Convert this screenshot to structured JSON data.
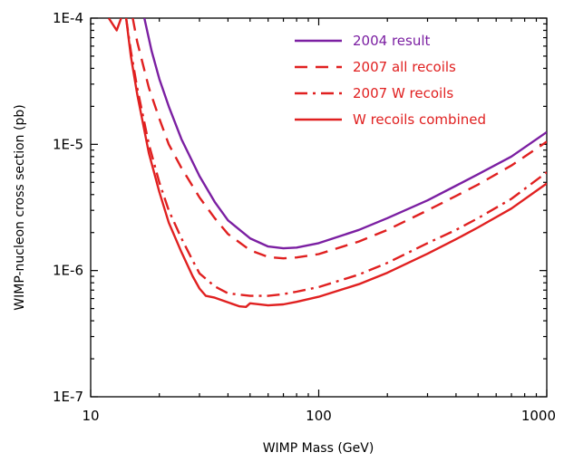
{
  "chart_data": {
    "type": "line",
    "xlabel": "WIMP Mass (GeV)",
    "ylabel": "WIMP-nucleon cross section (pb)",
    "x_scale": "log",
    "y_scale": "log",
    "xlim": [
      10,
      1000
    ],
    "ylim": [
      1e-07,
      0.0001
    ],
    "grid": false,
    "legend_position": "top-right",
    "x_ticks": [
      {
        "value": 10,
        "label": "10"
      },
      {
        "value": 100,
        "label": "100"
      },
      {
        "value": 1000,
        "label": "1000"
      }
    ],
    "y_ticks": [
      {
        "value": 1e-07,
        "label": "1E-7"
      },
      {
        "value": 1e-06,
        "label": "1E-6"
      },
      {
        "value": 1e-05,
        "label": "1E-5"
      },
      {
        "value": 0.0001,
        "label": "1E-4"
      }
    ],
    "series": [
      {
        "name": "2004 result",
        "color": "#7b1fa2",
        "style": "solid",
        "points": [
          [
            17.2,
            0.0001
          ],
          [
            18.5,
            5.5e-05
          ],
          [
            20,
            3.3e-05
          ],
          [
            22,
            2e-05
          ],
          [
            25,
            1.1e-05
          ],
          [
            30,
            5.6e-06
          ],
          [
            35,
            3.5e-06
          ],
          [
            40,
            2.5e-06
          ],
          [
            50,
            1.8e-06
          ],
          [
            60,
            1.55e-06
          ],
          [
            70,
            1.5e-06
          ],
          [
            80,
            1.52e-06
          ],
          [
            100,
            1.65e-06
          ],
          [
            150,
            2.1e-06
          ],
          [
            200,
            2.6e-06
          ],
          [
            300,
            3.6e-06
          ],
          [
            400,
            4.7e-06
          ],
          [
            500,
            5.8e-06
          ],
          [
            700,
            8e-06
          ],
          [
            1000,
            1.25e-05
          ]
        ]
      },
      {
        "name": "2007 all recoils",
        "color": "#e02020",
        "style": "dashed",
        "points": [
          [
            15.3,
            0.0001
          ],
          [
            16,
            6.5e-05
          ],
          [
            18,
            2.8e-05
          ],
          [
            20,
            1.6e-05
          ],
          [
            22,
            1e-05
          ],
          [
            25,
            6.5e-06
          ],
          [
            30,
            3.8e-06
          ],
          [
            35,
            2.6e-06
          ],
          [
            40,
            1.95e-06
          ],
          [
            50,
            1.45e-06
          ],
          [
            60,
            1.28e-06
          ],
          [
            70,
            1.25e-06
          ],
          [
            80,
            1.27e-06
          ],
          [
            100,
            1.35e-06
          ],
          [
            150,
            1.7e-06
          ],
          [
            200,
            2.1e-06
          ],
          [
            300,
            3e-06
          ],
          [
            400,
            3.9e-06
          ],
          [
            500,
            4.8e-06
          ],
          [
            700,
            6.8e-06
          ],
          [
            1000,
            1.05e-05
          ]
        ]
      },
      {
        "name": "2007 W  recoils",
        "color": "#e02020",
        "style": "dashdot",
        "points": [
          [
            14.3,
            0.0001
          ],
          [
            15,
            5.5e-05
          ],
          [
            16,
            2.8e-05
          ],
          [
            18,
            1e-05
          ],
          [
            20,
            5e-06
          ],
          [
            22,
            3e-06
          ],
          [
            25,
            1.8e-06
          ],
          [
            28,
            1.2e-06
          ],
          [
            30,
            9.5e-07
          ],
          [
            35,
            7.5e-07
          ],
          [
            40,
            6.6e-07
          ],
          [
            50,
            6.3e-07
          ],
          [
            60,
            6.3e-07
          ],
          [
            70,
            6.5e-07
          ],
          [
            80,
            6.8e-07
          ],
          [
            100,
            7.4e-07
          ],
          [
            150,
            9.3e-07
          ],
          [
            200,
            1.15e-06
          ],
          [
            300,
            1.65e-06
          ],
          [
            400,
            2.1e-06
          ],
          [
            500,
            2.6e-06
          ],
          [
            700,
            3.7e-06
          ],
          [
            1000,
            6e-06
          ]
        ]
      },
      {
        "name": "W recoils combined",
        "color": "#e02020",
        "style": "solid",
        "points": [
          [
            14.3,
            0.0001
          ],
          [
            15,
            5e-05
          ],
          [
            16,
            2.5e-05
          ],
          [
            18,
            8.5e-06
          ],
          [
            20,
            4.2e-06
          ],
          [
            22,
            2.4e-06
          ],
          [
            25,
            1.4e-06
          ],
          [
            28,
            9e-07
          ],
          [
            30,
            7.2e-07
          ],
          [
            32,
            6.3e-07
          ],
          [
            35,
            6.1e-07
          ],
          [
            40,
            5.6e-07
          ],
          [
            45,
            5.2e-07
          ],
          [
            48,
            5.15e-07
          ],
          [
            50,
            5.5e-07
          ],
          [
            60,
            5.3e-07
          ],
          [
            70,
            5.4e-07
          ],
          [
            80,
            5.65e-07
          ],
          [
            100,
            6.2e-07
          ],
          [
            150,
            7.8e-07
          ],
          [
            200,
            9.6e-07
          ],
          [
            300,
            1.36e-06
          ],
          [
            400,
            1.77e-06
          ],
          [
            500,
            2.2e-06
          ],
          [
            700,
            3.1e-06
          ],
          [
            1000,
            4.9e-06
          ]
        ]
      },
      {
        "name": "",
        "color": "#e02020",
        "style": "solid",
        "points": [
          [
            12,
            0.0001
          ],
          [
            13,
            8e-05
          ],
          [
            13.6,
            0.0001
          ]
        ]
      }
    ]
  }
}
